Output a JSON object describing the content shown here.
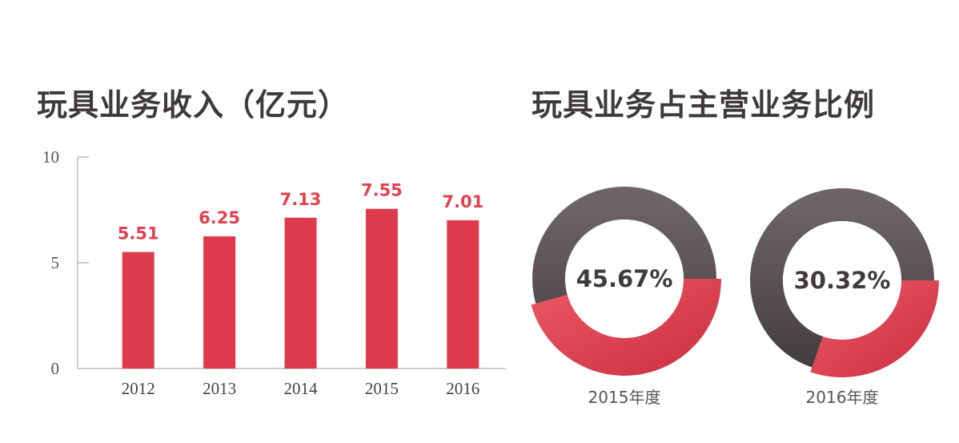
{
  "titles": {
    "bar": "玩具业务收入（亿元）",
    "donut": "玩具业务占主营业务比例"
  },
  "colors": {
    "bar": "#dd3b4b",
    "value_label": "#e0414f",
    "donut_dark": "#5a5255",
    "donut_red": "#de3a4b"
  },
  "chart_data": [
    {
      "type": "bar",
      "title": "玩具业务收入（亿元）",
      "categories": [
        "2012",
        "2013",
        "2014",
        "2015",
        "2016"
      ],
      "values": [
        5.51,
        6.25,
        7.13,
        7.55,
        7.01
      ],
      "value_labels": [
        "5.51",
        "6.25",
        "7.13",
        "7.55",
        "7.01"
      ],
      "ylim": [
        0,
        10
      ],
      "yticks": [
        "0",
        "5",
        "10"
      ],
      "xlabel": "",
      "ylabel": "",
      "grid": false
    },
    {
      "type": "pie",
      "title": "玩具业务占主营业务比例",
      "style": "donut",
      "charts": [
        {
          "label": "2015年度",
          "value": 45.67,
          "value_label": "45.67%"
        },
        {
          "label": "2016年度",
          "value": 30.32,
          "value_label": "30.32%"
        }
      ]
    }
  ]
}
